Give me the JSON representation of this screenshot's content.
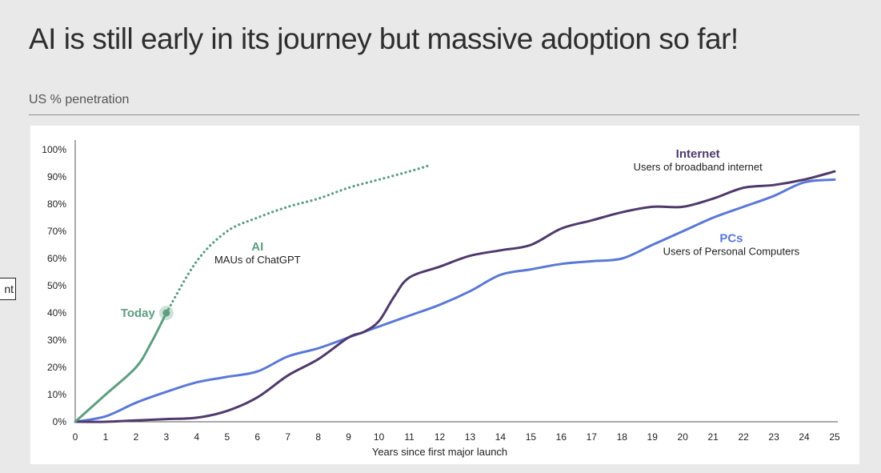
{
  "page": {
    "title": "AI is still early in its journey but massive adoption so far!",
    "subtitle": "US % penetration",
    "tooltip_fragment": "nt"
  },
  "chart_data": {
    "type": "line",
    "title": "AI is still early in its journey but massive adoption so far!",
    "ylabel": "US % penetration",
    "xlabel": "Years since first major launch",
    "xlim": [
      0,
      25
    ],
    "ylim": [
      0,
      100
    ],
    "xticks": [
      "0",
      "1",
      "2",
      "3",
      "4",
      "5",
      "6",
      "7",
      "8",
      "9",
      "10",
      "11",
      "12",
      "13",
      "14",
      "15",
      "16",
      "17",
      "18",
      "19",
      "20",
      "21",
      "22",
      "23",
      "24",
      "25"
    ],
    "yticks": [
      "0%",
      "10%",
      "20%",
      "30%",
      "40%",
      "50%",
      "60%",
      "70%",
      "80%",
      "90%",
      "100%"
    ],
    "grid": false,
    "series": [
      {
        "name": "AI",
        "description": "MAUs of ChatGPT",
        "color": "#5e9e80",
        "style": "solid",
        "x": [
          0,
          1,
          2,
          2.5,
          3
        ],
        "y": [
          0,
          10,
          20,
          29,
          40
        ]
      },
      {
        "name": "AI (projected)",
        "color": "#5e9e80",
        "style": "dotted",
        "x": [
          3,
          4,
          5,
          6,
          7,
          8,
          9,
          10,
          11,
          11.6
        ],
        "y": [
          40,
          59,
          70,
          75,
          79,
          82,
          86,
          89,
          92,
          94
        ]
      },
      {
        "name": "Internet",
        "description": "Users of broadband internet",
        "color": "#4f3a6b",
        "style": "solid",
        "x": [
          0,
          1,
          2,
          3,
          4,
          5,
          6,
          7,
          8,
          9,
          9.5,
          10,
          10.5,
          11,
          12,
          13,
          14,
          15,
          16,
          17,
          18,
          19,
          20,
          21,
          22,
          23,
          24,
          25
        ],
        "y": [
          0,
          0,
          0.5,
          1,
          1.5,
          4,
          9,
          17,
          23,
          31,
          33,
          37,
          46,
          53,
          57,
          61,
          63,
          65,
          71,
          74,
          77,
          79,
          79,
          82,
          86,
          87,
          89,
          92
        ]
      },
      {
        "name": "PCs",
        "description": "Users of Personal Computers",
        "color": "#5a78d6",
        "style": "solid",
        "x": [
          0,
          1,
          2,
          3,
          4,
          5,
          6,
          7,
          8,
          9,
          10,
          11,
          12,
          13,
          14,
          15,
          16,
          17,
          18,
          19,
          20,
          21,
          22,
          23,
          24,
          25
        ],
        "y": [
          0,
          2,
          7,
          11,
          14.5,
          16.5,
          18.5,
          24,
          27,
          31,
          35,
          39,
          43,
          48,
          54,
          56,
          58,
          59,
          60,
          65,
          70,
          75,
          79,
          83,
          88,
          89
        ]
      }
    ],
    "annotations": [
      {
        "label": "Today",
        "x": 3,
        "y": 40,
        "color": "#5e9e80"
      },
      {
        "label": "AI",
        "sublabel": "MAUs of ChatGPT",
        "x": 6,
        "y": 63,
        "color": "#5e9e80"
      },
      {
        "label": "Internet",
        "sublabel": "Users of broadband internet",
        "x": 20.5,
        "y": 97,
        "color": "#4f3a6b"
      },
      {
        "label": "PCs",
        "sublabel": "Users of Personal Computers",
        "x": 21.6,
        "y": 66,
        "color": "#5a78d6"
      }
    ]
  }
}
